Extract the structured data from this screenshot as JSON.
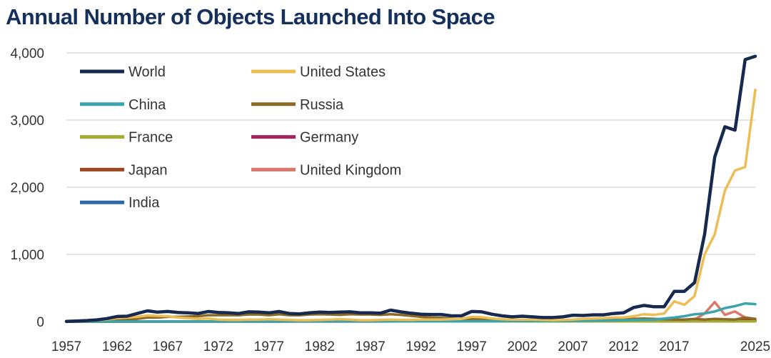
{
  "chart_data": {
    "type": "line",
    "title": "Annual Number of Objects Launched Into Space",
    "xlabel": "",
    "ylabel": "",
    "xlim": [
      1957,
      2025
    ],
    "ylim": [
      0,
      4000
    ],
    "y_ticks": [
      0,
      1000,
      2000,
      3000,
      4000
    ],
    "y_tick_labels": [
      "0",
      "1,000",
      "2,000",
      "3,000",
      "4,000"
    ],
    "x_ticks": [
      1957,
      1962,
      1967,
      1972,
      1977,
      1982,
      1987,
      1992,
      1997,
      2002,
      2007,
      2012,
      2017,
      2025
    ],
    "x_tick_labels": [
      "1957",
      "1962",
      "1967",
      "1972",
      "1977",
      "1982",
      "1987",
      "1992",
      "1997",
      "2002",
      "2007",
      "2012",
      "2017",
      "2025"
    ],
    "grid": "horizontal",
    "legend_placement": "top-left",
    "series": [
      {
        "name": "World",
        "color": "#17294f",
        "width": 4.5,
        "x": [
          1957,
          1958,
          1959,
          1960,
          1961,
          1962,
          1963,
          1964,
          1965,
          1966,
          1967,
          1968,
          1969,
          1970,
          1971,
          1972,
          1973,
          1974,
          1975,
          1976,
          1977,
          1978,
          1979,
          1980,
          1981,
          1982,
          1983,
          1984,
          1985,
          1986,
          1987,
          1988,
          1989,
          1990,
          1991,
          1992,
          1993,
          1994,
          1995,
          1996,
          1997,
          1998,
          1999,
          2000,
          2001,
          2002,
          2003,
          2004,
          2005,
          2006,
          2007,
          2008,
          2009,
          2010,
          2011,
          2012,
          2013,
          2014,
          2015,
          2016,
          2017,
          2018,
          2019,
          2020,
          2021,
          2022,
          2023,
          2024,
          2025
        ],
        "y": [
          2,
          8,
          15,
          25,
          45,
          75,
          80,
          120,
          160,
          140,
          150,
          135,
          130,
          120,
          150,
          135,
          130,
          120,
          145,
          140,
          130,
          150,
          120,
          115,
          130,
          140,
          135,
          140,
          145,
          130,
          130,
          125,
          170,
          145,
          125,
          110,
          105,
          105,
          85,
          85,
          150,
          145,
          110,
          85,
          70,
          80,
          70,
          60,
          60,
          70,
          95,
          90,
          100,
          100,
          120,
          130,
          210,
          240,
          220,
          220,
          450,
          450,
          580,
          1300,
          2450,
          2900,
          2850,
          3900,
          3950
        ]
      },
      {
        "name": "United States",
        "color": "#ecbd55",
        "width": 3.5,
        "x": [
          1957,
          1958,
          1959,
          1960,
          1961,
          1962,
          1963,
          1964,
          1965,
          1966,
          1967,
          1968,
          1969,
          1970,
          1971,
          1972,
          1973,
          1974,
          1975,
          1976,
          1977,
          1978,
          1979,
          1980,
          1981,
          1982,
          1983,
          1984,
          1985,
          1986,
          1987,
          1988,
          1989,
          1990,
          1991,
          1992,
          1993,
          1994,
          1995,
          1996,
          1997,
          1998,
          1999,
          2000,
          2001,
          2002,
          2003,
          2004,
          2005,
          2006,
          2007,
          2008,
          2009,
          2010,
          2011,
          2012,
          2013,
          2014,
          2015,
          2016,
          2017,
          2018,
          2019,
          2020,
          2021,
          2022,
          2023,
          2024,
          2025
        ],
        "y": [
          0,
          5,
          10,
          20,
          30,
          50,
          60,
          70,
          90,
          85,
          80,
          60,
          50,
          40,
          45,
          30,
          25,
          25,
          30,
          30,
          35,
          30,
          25,
          20,
          20,
          25,
          30,
          35,
          30,
          20,
          20,
          25,
          30,
          25,
          25,
          30,
          30,
          30,
          35,
          40,
          70,
          65,
          45,
          35,
          30,
          30,
          30,
          25,
          20,
          25,
          30,
          40,
          45,
          50,
          60,
          60,
          80,
          110,
          100,
          120,
          300,
          250,
          380,
          1000,
          1300,
          1950,
          2250,
          2300,
          3450
        ]
      },
      {
        "name": "China",
        "color": "#3aa3ad",
        "width": 3.5,
        "x": [
          1957,
          1970,
          1980,
          1990,
          2000,
          2005,
          2010,
          2012,
          2015,
          2017,
          2018,
          2019,
          2020,
          2021,
          2022,
          2023,
          2024,
          2025
        ],
        "y": [
          0,
          1,
          2,
          3,
          5,
          8,
          15,
          20,
          30,
          60,
          80,
          110,
          120,
          150,
          200,
          230,
          270,
          260
        ]
      },
      {
        "name": "Russia",
        "color": "#8b6a26",
        "width": 3.5,
        "x": [
          1957,
          1958,
          1959,
          1960,
          1961,
          1962,
          1963,
          1964,
          1965,
          1966,
          1967,
          1968,
          1969,
          1970,
          1971,
          1972,
          1973,
          1974,
          1975,
          1976,
          1977,
          1978,
          1979,
          1980,
          1981,
          1982,
          1983,
          1984,
          1985,
          1986,
          1987,
          1988,
          1989,
          1990,
          1991,
          1992,
          1993,
          1994,
          1995,
          1996,
          1997,
          1998,
          1999,
          2000,
          2001,
          2002,
          2003,
          2004,
          2005,
          2006,
          2007,
          2008,
          2009,
          2010,
          2011,
          2012,
          2013,
          2014,
          2015,
          2016,
          2017,
          2018,
          2019,
          2020,
          2021,
          2022,
          2023,
          2024,
          2025
        ],
        "y": [
          2,
          3,
          3,
          5,
          10,
          20,
          25,
          40,
          60,
          60,
          70,
          70,
          75,
          80,
          95,
          95,
          95,
          95,
          105,
          105,
          95,
          110,
          95,
          95,
          105,
          110,
          105,
          100,
          110,
          105,
          105,
          100,
          110,
          100,
          85,
          70,
          60,
          55,
          40,
          30,
          40,
          35,
          30,
          25,
          20,
          25,
          20,
          20,
          15,
          20,
          25,
          25,
          25,
          30,
          35,
          30,
          40,
          45,
          40,
          35,
          30,
          30,
          40,
          30,
          40,
          35,
          30,
          60,
          40
        ]
      },
      {
        "name": "France",
        "color": "#a3ad35",
        "width": 3.5,
        "x": [
          1957,
          1965,
          1970,
          1980,
          1990,
          2000,
          2010,
          2020,
          2025
        ],
        "y": [
          0,
          2,
          3,
          2,
          3,
          3,
          2,
          5,
          3
        ]
      },
      {
        "name": "Germany",
        "color": "#a0245f",
        "width": 3.5,
        "x": [
          1957,
          1969,
          1980,
          1990,
          2000,
          2010,
          2020,
          2025
        ],
        "y": [
          0,
          1,
          1,
          2,
          3,
          2,
          4,
          3
        ]
      },
      {
        "name": "Japan",
        "color": "#9e4620",
        "width": 3.5,
        "x": [
          1957,
          1970,
          1980,
          1990,
          2000,
          2010,
          2019,
          2020,
          2021,
          2022,
          2023,
          2024,
          2025
        ],
        "y": [
          0,
          1,
          2,
          3,
          3,
          5,
          5,
          10,
          15,
          20,
          25,
          30,
          15
        ]
      },
      {
        "name": "United Kingdom",
        "color": "#d9786b",
        "width": 3.5,
        "x": [
          1957,
          1962,
          1970,
          1980,
          1990,
          2000,
          2010,
          2018,
          2019,
          2020,
          2021,
          2022,
          2023,
          2024,
          2025
        ],
        "y": [
          0,
          1,
          2,
          1,
          2,
          3,
          5,
          10,
          30,
          120,
          290,
          100,
          150,
          60,
          20
        ]
      },
      {
        "name": "India",
        "color": "#2a68a8",
        "width": 3.5,
        "x": [
          1957,
          1975,
          1980,
          1990,
          2000,
          2010,
          2020,
          2025
        ],
        "y": [
          0,
          1,
          2,
          2,
          3,
          5,
          10,
          8
        ]
      }
    ]
  }
}
